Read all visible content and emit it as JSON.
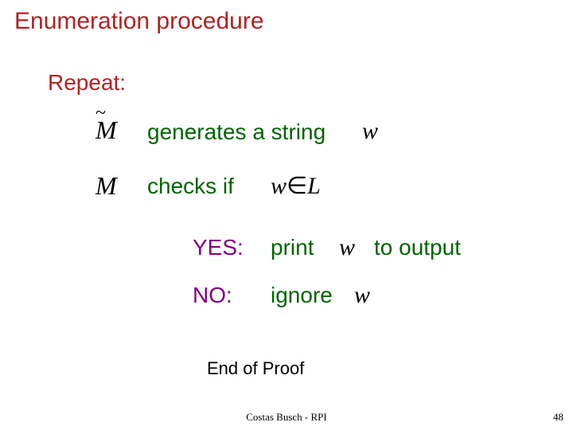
{
  "title": "Enumeration procedure",
  "repeat": "Repeat:",
  "mTilde": "M",
  "generates": "generates a string",
  "w": "w",
  "mPlain": "M",
  "checks": "checks  if",
  "wInL_w": "w",
  "wInL_in": "∈",
  "wInL_L": "L",
  "yesLabel": "YES:",
  "yesPrint": "print",
  "toOutput": "to output",
  "noLabel": "NO:",
  "noIgnore": "ignore",
  "endProof": "End of Proof",
  "footer": "Costas Busch - RPI",
  "pageNum": "48",
  "colors": {
    "title": "#b22222",
    "body": "#006400",
    "label": "#800080",
    "math": "#000000",
    "background": "#ffffff"
  },
  "fontsize": {
    "title": 30,
    "body": 28,
    "math": 30,
    "endproof": 22,
    "footer": 13
  }
}
